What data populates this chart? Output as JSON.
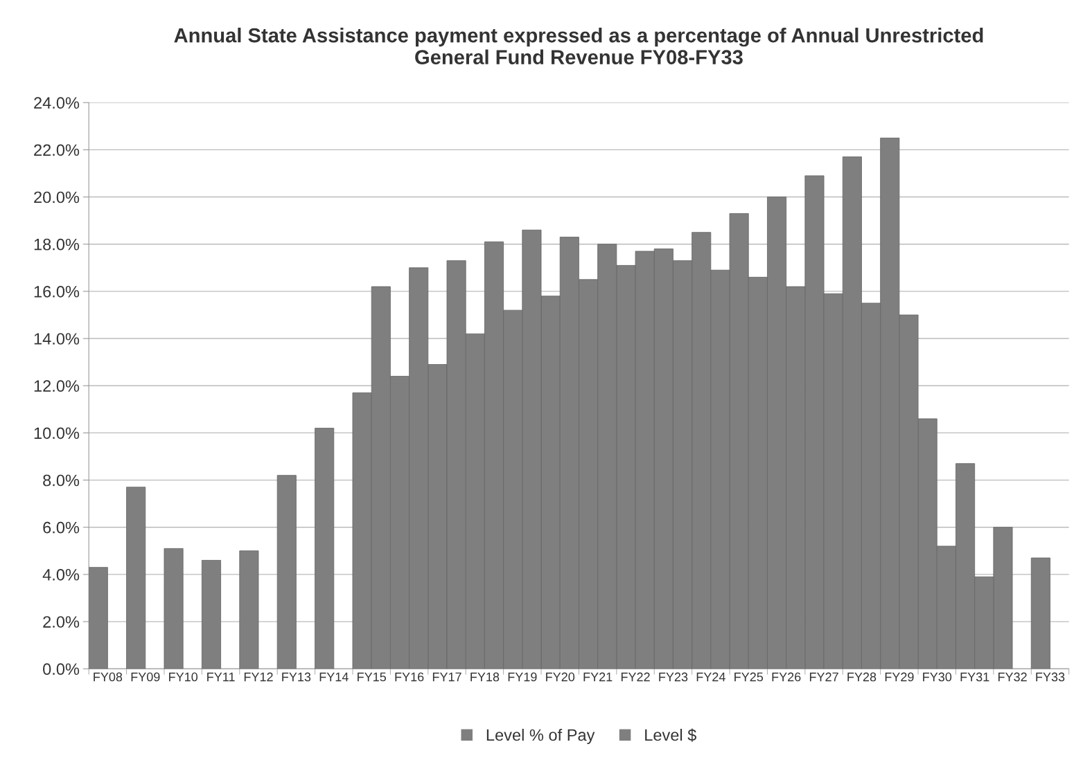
{
  "chart_data": {
    "type": "bar",
    "title": "Annual State Assistance payment expressed as a percentage of Annual Unrestricted\nGeneral Fund Revenue FY08-FY33",
    "categories": [
      "FY08",
      "FY09",
      "FY10",
      "FY11",
      "FY12",
      "FY13",
      "FY14",
      "FY15",
      "FY16",
      "FY17",
      "FY18",
      "FY19",
      "FY20",
      "FY21",
      "FY22",
      "FY23",
      "FY24",
      "FY25",
      "FY26",
      "FY27",
      "FY28",
      "FY29",
      "FY30",
      "FY31",
      "FY32",
      "FY33"
    ],
    "series": [
      {
        "name": "Level % of Pay",
        "color": "#7f7f7f",
        "values": [
          4.3,
          7.7,
          5.1,
          4.6,
          5.0,
          8.2,
          10.2,
          11.7,
          12.4,
          12.9,
          14.2,
          15.2,
          15.8,
          16.5,
          17.1,
          17.8,
          18.5,
          19.3,
          20.0,
          20.9,
          21.7,
          22.5,
          10.6,
          8.7,
          6.0,
          4.7
        ]
      },
      {
        "name": "Level $",
        "color": "#7f7f7f",
        "values": [
          null,
          null,
          null,
          null,
          null,
          null,
          null,
          16.2,
          17.0,
          17.3,
          18.1,
          18.6,
          18.3,
          18.0,
          17.7,
          17.3,
          16.9,
          16.6,
          16.2,
          15.9,
          15.5,
          15.0,
          5.2,
          3.9,
          null,
          null
        ]
      }
    ],
    "ylim": [
      0,
      24
    ],
    "yticks": [
      {
        "value": 0,
        "label": "0.0%"
      },
      {
        "value": 2,
        "label": "2.0%"
      },
      {
        "value": 4,
        "label": "4.0%"
      },
      {
        "value": 6,
        "label": "6.0%"
      },
      {
        "value": 8,
        "label": "8.0%"
      },
      {
        "value": 10,
        "label": "10.0%"
      },
      {
        "value": 12,
        "label": "12.0%"
      },
      {
        "value": 14,
        "label": "14.0%"
      },
      {
        "value": 16,
        "label": "16.0%"
      },
      {
        "value": 18,
        "label": "18.0%"
      },
      {
        "value": 20,
        "label": "20.0%"
      },
      {
        "value": 22,
        "label": "22.0%"
      },
      {
        "value": 24,
        "label": "24.0%"
      }
    ],
    "grid": "y",
    "legend": "bottom"
  }
}
